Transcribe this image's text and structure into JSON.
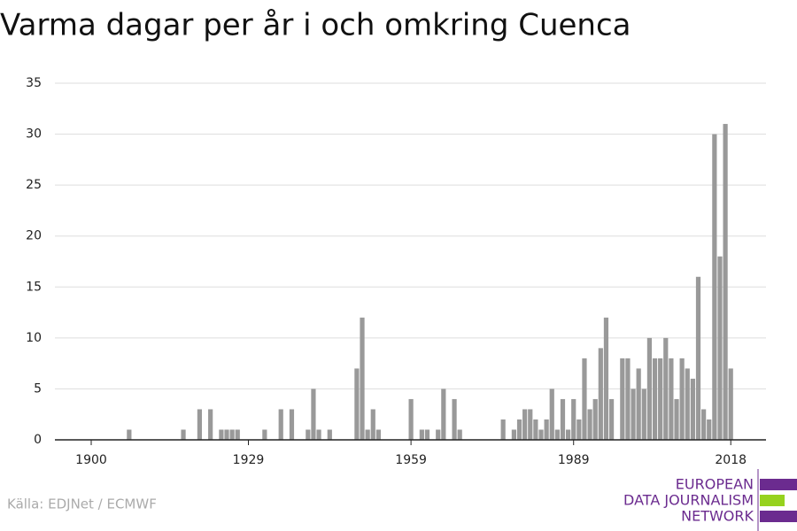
{
  "chart_data": {
    "type": "bar",
    "title": "Varma dagar per år i och omkring Cuenca",
    "source": "Källa: EDJNet / ECMWF",
    "logo": [
      "EUROPEAN",
      "DATA JOURNALISM",
      "NETWORK"
    ],
    "color": "#999999",
    "x": [
      1900,
      1901,
      1902,
      1903,
      1904,
      1905,
      1906,
      1907,
      1908,
      1909,
      1910,
      1911,
      1912,
      1913,
      1914,
      1915,
      1916,
      1917,
      1918,
      1919,
      1920,
      1921,
      1922,
      1923,
      1924,
      1925,
      1926,
      1927,
      1928,
      1929,
      1930,
      1931,
      1932,
      1933,
      1934,
      1935,
      1936,
      1937,
      1938,
      1939,
      1940,
      1941,
      1942,
      1943,
      1944,
      1945,
      1946,
      1947,
      1948,
      1949,
      1950,
      1951,
      1952,
      1953,
      1954,
      1955,
      1956,
      1957,
      1958,
      1959,
      1960,
      1961,
      1962,
      1963,
      1964,
      1965,
      1966,
      1967,
      1968,
      1969,
      1970,
      1971,
      1972,
      1973,
      1974,
      1975,
      1976,
      1977,
      1978,
      1979,
      1980,
      1981,
      1982,
      1983,
      1984,
      1985,
      1986,
      1987,
      1988,
      1989,
      1990,
      1991,
      1992,
      1993,
      1994,
      1995,
      1996,
      1997,
      1998,
      1999,
      2000,
      2001,
      2002,
      2003,
      2004,
      2005,
      2006,
      2007,
      2008,
      2009,
      2010,
      2011,
      2012,
      2013,
      2014,
      2015,
      2016,
      2017,
      2018
    ],
    "values": [
      0,
      0,
      0,
      0,
      0,
      0,
      0,
      1,
      0,
      0,
      0,
      0,
      0,
      0,
      0,
      0,
      0,
      1,
      0,
      0,
      3,
      0,
      3,
      0,
      1,
      1,
      1,
      1,
      0,
      0,
      0,
      0,
      1,
      0,
      0,
      3,
      0,
      3,
      0,
      0,
      1,
      5,
      1,
      0,
      1,
      0,
      0,
      0,
      0,
      7,
      12,
      1,
      3,
      1,
      0,
      0,
      0,
      0,
      0,
      4,
      0,
      1,
      1,
      0,
      1,
      5,
      0,
      4,
      1,
      0,
      0,
      0,
      0,
      0,
      0,
      0,
      2,
      0,
      1,
      2,
      3,
      3,
      2,
      1,
      2,
      5,
      1,
      4,
      1,
      4,
      2,
      8,
      3,
      4,
      9,
      12,
      4,
      0,
      8,
      8,
      5,
      7,
      5,
      10,
      8,
      8,
      10,
      8,
      4,
      8,
      7,
      6,
      16,
      3,
      2,
      30,
      18,
      31,
      7
    ],
    "xlim": [
      1893.3,
      2024.5
    ],
    "xticks": [
      1900,
      1929,
      1959,
      1989,
      2018
    ],
    "ylim": [
      0,
      35
    ],
    "yticks": [
      0,
      5,
      10,
      15,
      20,
      25,
      30,
      35
    ],
    "grid": true
  }
}
